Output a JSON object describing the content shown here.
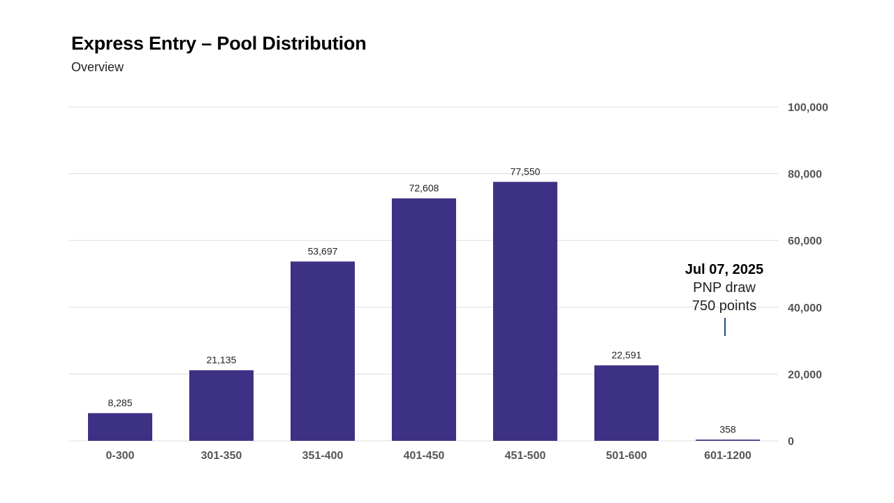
{
  "title": "Express Entry – Pool Distribution",
  "subtitle": "Overview",
  "colors": {
    "bar": "#3d3185",
    "annotation_line": "#1f4e79"
  },
  "chart_data": {
    "type": "bar",
    "title": "Express Entry – Pool Distribution",
    "subtitle": "Overview",
    "categories": [
      "0-300",
      "301-350",
      "351-400",
      "401-450",
      "451-500",
      "501-600",
      "601-1200"
    ],
    "values": [
      8285,
      21135,
      53697,
      72608,
      77550,
      22591,
      358
    ],
    "value_labels": [
      "8,285",
      "21,135",
      "53,697",
      "72,608",
      "77,550",
      "22,591",
      "358"
    ],
    "ylim": [
      0,
      100000
    ],
    "yticks": [
      0,
      20000,
      40000,
      60000,
      80000,
      100000
    ],
    "ytick_labels": [
      "0",
      "20,000",
      "40,000",
      "60,000",
      "80,000",
      "100,000"
    ],
    "y_axis_side": "right",
    "grid": true,
    "legend": "none",
    "annotation": {
      "category": "601-1200",
      "date": "Jul 07, 2025",
      "line1": "PNP draw",
      "line2": "750 points"
    }
  }
}
